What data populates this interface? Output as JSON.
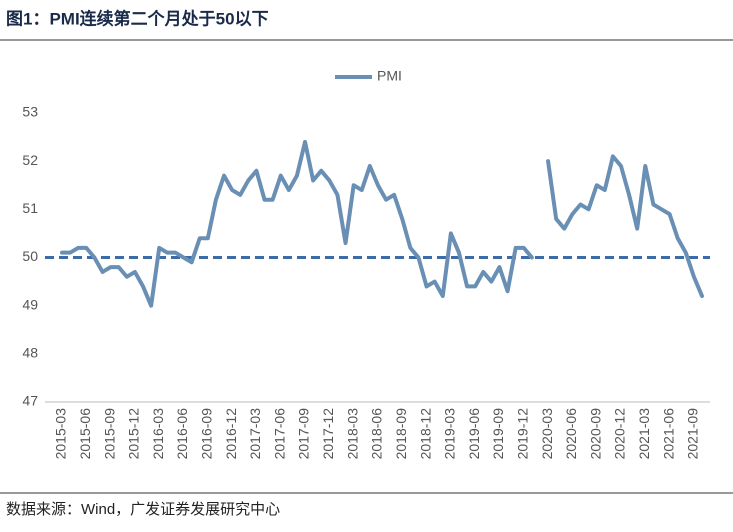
{
  "chart_data": {
    "type": "line",
    "title": "图1：PMI连续第二个月处于50以下",
    "source": "数据来源：Wind，广发证券发展研究中心",
    "categories": [
      "2015-03",
      null,
      null,
      "2015-06",
      null,
      null,
      "2015-09",
      null,
      null,
      "2015-12",
      null,
      null,
      "2016-03",
      null,
      null,
      "2016-06",
      null,
      null,
      "2016-09",
      null,
      null,
      "2016-12",
      null,
      null,
      "2017-03",
      null,
      null,
      "2017-06",
      null,
      null,
      "2017-09",
      null,
      null,
      "2017-12",
      null,
      null,
      "2018-03",
      null,
      null,
      "2018-06",
      null,
      null,
      "2018-09",
      null,
      null,
      "2018-12",
      null,
      null,
      "2019-03",
      null,
      null,
      "2019-06",
      null,
      null,
      "2019-09",
      null,
      null,
      "2019-12",
      null,
      null,
      "2020-03",
      null,
      null,
      "2020-06",
      null,
      null,
      "2020-09",
      null,
      null,
      "2020-12",
      null,
      null,
      "2021-03",
      null,
      null,
      "2021-06",
      null,
      null,
      "2021-09",
      null
    ],
    "series": [
      {
        "name": "PMI",
        "color": "#6a8fb4",
        "values": [
          50.1,
          50.1,
          50.2,
          50.2,
          50.0,
          49.7,
          49.8,
          49.8,
          49.6,
          49.7,
          49.4,
          49.0,
          50.2,
          50.1,
          50.1,
          50.0,
          49.9,
          50.4,
          50.4,
          51.2,
          51.7,
          51.4,
          51.3,
          51.6,
          51.8,
          51.2,
          51.2,
          51.7,
          51.4,
          51.7,
          52.4,
          51.6,
          51.8,
          51.6,
          51.3,
          50.3,
          51.5,
          51.4,
          51.9,
          51.5,
          51.2,
          51.3,
          50.8,
          50.2,
          50.0,
          49.4,
          49.5,
          49.2,
          50.5,
          50.1,
          49.4,
          49.4,
          49.7,
          49.5,
          49.8,
          49.3,
          50.2,
          50.2,
          50.0,
          null,
          52.0,
          50.8,
          50.6,
          50.9,
          51.1,
          51.0,
          51.5,
          51.4,
          52.1,
          51.9,
          51.3,
          50.6,
          51.9,
          51.1,
          51.0,
          50.9,
          50.4,
          50.1,
          49.6,
          49.2
        ]
      }
    ],
    "reference_line": {
      "value": 50,
      "color": "#3b6ca8"
    },
    "ylim": [
      47,
      53
    ],
    "yticks": [
      47,
      48,
      49,
      50,
      51,
      52,
      53
    ],
    "grid": false,
    "legend": "top"
  }
}
